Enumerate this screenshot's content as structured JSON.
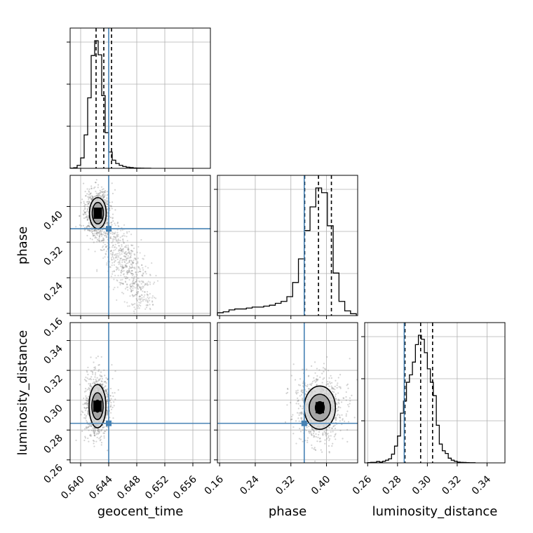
{
  "chart_data": {
    "type": "corner",
    "parameters": [
      {
        "name": "geocent_time",
        "xlabel": "geocent_time",
        "range": [
          0.6385,
          0.6585
        ],
        "ticks": [
          0.64,
          0.644,
          0.648,
          0.652,
          0.656
        ],
        "tick_labels": [
          "0.640",
          "0.644",
          "0.648",
          "0.652",
          "0.656"
        ],
        "truth": 0.644,
        "quantiles": [
          0.6422,
          0.6433,
          0.6444
        ],
        "hist": {
          "edges": [
            0.6385,
            0.639,
            0.6395,
            0.64,
            0.6405,
            0.641,
            0.6415,
            0.642,
            0.6425,
            0.643,
            0.6435,
            0.644,
            0.6445,
            0.645,
            0.6455,
            0.646,
            0.6465,
            0.647,
            0.6475,
            0.648,
            0.6485,
            0.649,
            0.6495,
            0.65
          ],
          "counts": [
            2,
            8,
            40,
            140,
            450,
            950,
            1520,
            1720,
            1530,
            980,
            480,
            220,
            110,
            65,
            40,
            25,
            15,
            10,
            5,
            3,
            2,
            1,
            1
          ]
        }
      },
      {
        "name": "phase",
        "xlabel": "phase",
        "ylabel": "phase",
        "range": [
          0.155,
          0.47
        ],
        "ticks": [
          0.16,
          0.24,
          0.32,
          0.4
        ],
        "tick_labels": [
          "0.16",
          "0.24",
          "0.32",
          "0.40"
        ],
        "truth": 0.35,
        "quantiles": [
          0.351,
          0.382,
          0.411
        ],
        "hist": {
          "edges": [
            0.155,
            0.168,
            0.181,
            0.194,
            0.207,
            0.22,
            0.233,
            0.246,
            0.259,
            0.272,
            0.285,
            0.298,
            0.311,
            0.324,
            0.337,
            0.35,
            0.363,
            0.376,
            0.389,
            0.402,
            0.415,
            0.428,
            0.441,
            0.454,
            0.467
          ],
          "counts": [
            3,
            4,
            6,
            7,
            7,
            8,
            9,
            9,
            10,
            11,
            13,
            15,
            20,
            35,
            60,
            90,
            115,
            135,
            130,
            95,
            45,
            15,
            5,
            2
          ]
        }
      },
      {
        "name": "luminosity_distance",
        "xlabel": "luminosity_distance",
        "ylabel": "luminosity_distance",
        "range": [
          0.258,
          0.352
        ],
        "ticks": [
          0.26,
          0.28,
          0.3,
          0.32,
          0.34
        ],
        "tick_labels": [
          "0.26",
          "0.28",
          "0.30",
          "0.32",
          "0.34"
        ],
        "truth": 0.2845,
        "quantiles": [
          0.285,
          0.2955,
          0.3035
        ],
        "hist": {
          "edges": [
            0.26,
            0.262,
            0.264,
            0.266,
            0.268,
            0.27,
            0.272,
            0.274,
            0.276,
            0.278,
            0.28,
            0.282,
            0.284,
            0.286,
            0.288,
            0.29,
            0.292,
            0.294,
            0.296,
            0.298,
            0.3,
            0.302,
            0.304,
            0.306,
            0.308,
            0.31,
            0.312,
            0.314,
            0.316,
            0.318,
            0.32,
            0.322,
            0.324,
            0.326,
            0.328,
            0.33,
            0.332
          ],
          "counts": [
            2,
            4,
            4,
            10,
            6,
            12,
            20,
            30,
            65,
            125,
            200,
            370,
            460,
            600,
            655,
            750,
            880,
            950,
            920,
            820,
            700,
            600,
            500,
            280,
            140,
            90,
            70,
            35,
            20,
            12,
            6,
            4,
            3,
            2,
            1,
            1
          ]
        }
      }
    ],
    "contours_2d": [
      {
        "x": "geocent_time",
        "y": "phase",
        "center": [
          0.64245,
          0.385
        ],
        "levels": [
          {
            "rx": 0.0004,
            "ry": 0.011
          },
          {
            "rx": 0.0008,
            "ry": 0.024
          },
          {
            "rx": 0.0012,
            "ry": 0.035
          }
        ],
        "tail": {
          "from": [
            0.6442,
            0.34
          ],
          "to": [
            0.649,
            0.19
          ]
        }
      },
      {
        "x": "geocent_time",
        "y": "luminosity_distance",
        "center": [
          0.6424,
          0.296
        ],
        "levels": [
          {
            "rx": 0.0004,
            "ry": 0.004
          },
          {
            "rx": 0.0008,
            "ry": 0.009
          },
          {
            "rx": 0.0012,
            "ry": 0.0145
          }
        ]
      },
      {
        "x": "phase",
        "y": "luminosity_distance",
        "center": [
          0.385,
          0.295
        ],
        "levels": [
          {
            "rx": 0.01,
            "ry": 0.004
          },
          {
            "rx": 0.024,
            "ry": 0.009
          },
          {
            "rx": 0.035,
            "ry": 0.0145
          }
        ]
      }
    ],
    "grid": true,
    "truth_color": "#4682b4",
    "line_color": "#000000",
    "grid_color": "#b0b0b0",
    "scatter_color": "#808080"
  }
}
